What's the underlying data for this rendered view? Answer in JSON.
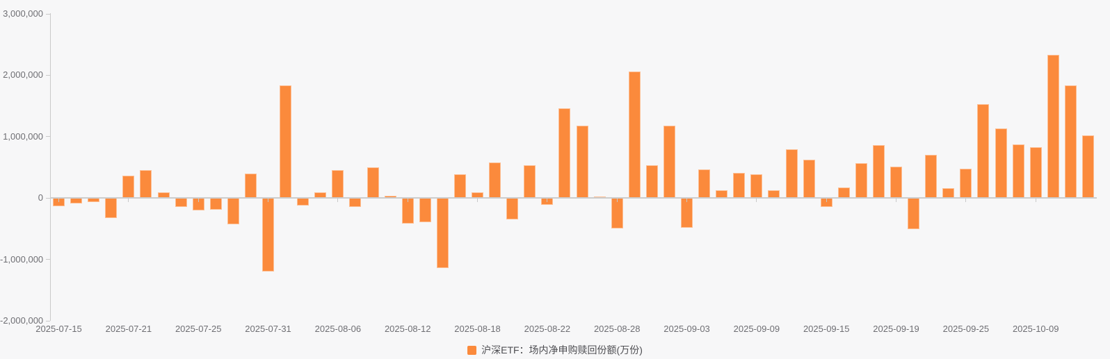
{
  "chart_data": {
    "type": "bar",
    "title": "",
    "series_name": "沪深ETF：场内净申购赎回份额(万份)",
    "legend_position": "bottom-center",
    "grid": false,
    "ylim": [
      -2000000,
      3000000
    ],
    "y_ticks": [
      3000000,
      2000000,
      1000000,
      0,
      -1000000,
      -2000000
    ],
    "y_tick_labels": [
      "3,000,000",
      "2,000,000",
      "1,000,000",
      "0",
      "-1,000,000",
      "-2,000,000"
    ],
    "visible_x_labels": [
      "2025-07-15",
      "2025-07-21",
      "2025-07-25",
      "2025-07-31",
      "2025-08-06",
      "2025-08-12",
      "2025-08-18",
      "2025-08-22",
      "2025-08-28",
      "2025-09-03",
      "2025-09-09",
      "2025-09-15",
      "2025-09-19",
      "2025-09-25",
      "2025-10-09"
    ],
    "x": [
      "2025-07-15",
      "2025-07-16",
      "2025-07-17",
      "2025-07-18",
      "2025-07-21",
      "2025-07-22",
      "2025-07-23",
      "2025-07-24",
      "2025-07-25",
      "2025-07-28",
      "2025-07-29",
      "2025-07-30",
      "2025-07-31",
      "2025-08-01",
      "2025-08-04",
      "2025-08-05",
      "2025-08-06",
      "2025-08-07",
      "2025-08-08",
      "2025-08-11",
      "2025-08-12",
      "2025-08-13",
      "2025-08-14",
      "2025-08-15",
      "2025-08-18",
      "2025-08-19",
      "2025-08-20",
      "2025-08-21",
      "2025-08-22",
      "2025-08-25",
      "2025-08-26",
      "2025-08-27",
      "2025-08-28",
      "2025-08-29",
      "2025-09-01",
      "2025-09-02",
      "2025-09-03",
      "2025-09-04",
      "2025-09-05",
      "2025-09-08",
      "2025-09-09",
      "2025-09-10",
      "2025-09-11",
      "2025-09-12",
      "2025-09-15",
      "2025-09-16",
      "2025-09-17",
      "2025-09-18",
      "2025-09-19",
      "2025-09-22",
      "2025-09-23",
      "2025-09-24",
      "2025-09-25",
      "2025-09-26",
      "2025-09-29",
      "2025-09-30",
      "2025-10-09",
      "2025-10-10",
      "2025-10-13",
      "2025-10-14"
    ],
    "values": [
      -130000,
      -90000,
      -70000,
      -330000,
      360000,
      450000,
      90000,
      -150000,
      -200000,
      -190000,
      -430000,
      400000,
      -1200000,
      1830000,
      -120000,
      90000,
      450000,
      -150000,
      500000,
      40000,
      -420000,
      -390000,
      -1140000,
      390000,
      90000,
      580000,
      -350000,
      530000,
      -110000,
      1460000,
      1180000,
      20000,
      -490000,
      2060000,
      530000,
      1180000,
      -480000,
      470000,
      130000,
      410000,
      390000,
      130000,
      790000,
      620000,
      -140000,
      170000,
      570000,
      860000,
      510000,
      -510000,
      700000,
      160000,
      480000,
      1530000,
      1130000,
      870000,
      830000,
      2330000,
      1840000,
      1020000
    ],
    "colors": {
      "bar": "#fb8a3c",
      "axis": "#c9c9c9",
      "tick_text": "#6e6e73",
      "legend_text": "#4e4e52",
      "background": "#f7f7f8"
    }
  }
}
